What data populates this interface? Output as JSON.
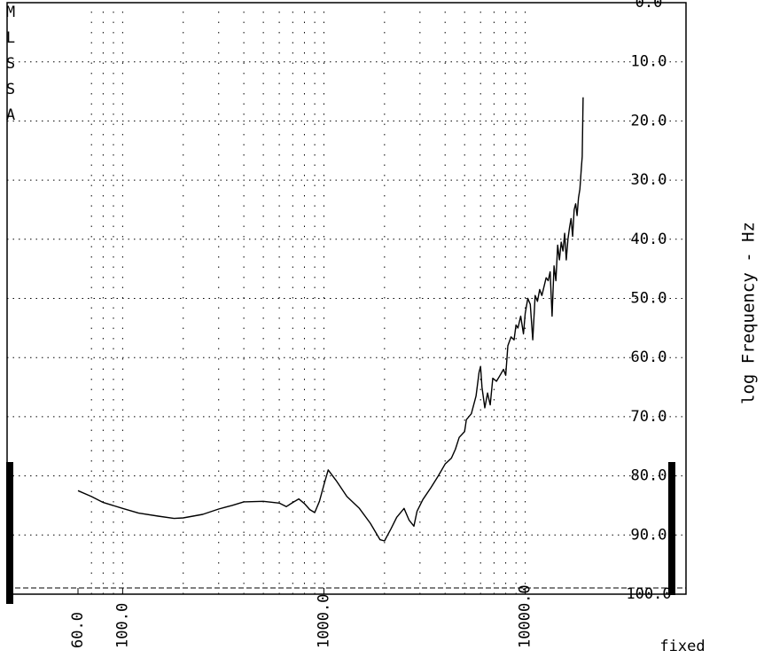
{
  "chart_data": {
    "type": "line",
    "header_letters": [
      "M",
      "L",
      "S",
      "S",
      "A"
    ],
    "xlabel": "log Frequency - Hz",
    "ylabel": "",
    "scale_mode": "fixed",
    "x_scale": "log",
    "xlim": [
      50,
      20000
    ],
    "ylim": [
      0,
      100
    ],
    "y_ticks": [
      100,
      90,
      80,
      70,
      60,
      50,
      40,
      30,
      20,
      10,
      0
    ],
    "y_tick_labels": [
      "100.0",
      "90.0",
      "80.0",
      "70.0",
      "60.0",
      "50.0",
      "40.0",
      "30.0",
      "20.0",
      "10.0",
      "0.0"
    ],
    "x_tick_labels": [
      {
        "value": 60,
        "label": "60.0"
      },
      {
        "value": 100,
        "label": "100.0"
      },
      {
        "value": 1000,
        "label": "1000.0"
      },
      {
        "value": 10000,
        "label": "10000.0"
      }
    ],
    "x_gridlines": [
      60,
      70,
      80,
      90,
      100,
      200,
      300,
      400,
      500,
      600,
      700,
      800,
      900,
      1000,
      2000,
      3000,
      4000,
      5000,
      6000,
      7000,
      8000,
      9000,
      10000
    ],
    "grid": true,
    "series": [
      {
        "points": [
          [
            60,
            82.5
          ],
          [
            70,
            83.5
          ],
          [
            80,
            84.5
          ],
          [
            100,
            85.5
          ],
          [
            120,
            86.3
          ],
          [
            150,
            86.8
          ],
          [
            180,
            87.2
          ],
          [
            200,
            87.1
          ],
          [
            250,
            86.5
          ],
          [
            300,
            85.6
          ],
          [
            350,
            85.0
          ],
          [
            400,
            84.4
          ],
          [
            500,
            84.3
          ],
          [
            600,
            84.6
          ],
          [
            650,
            85.2
          ],
          [
            700,
            84.5
          ],
          [
            750,
            83.9
          ],
          [
            800,
            84.7
          ],
          [
            850,
            85.7
          ],
          [
            900,
            86.2
          ],
          [
            950,
            84.3
          ],
          [
            1000,
            81.5
          ],
          [
            1050,
            79.0
          ],
          [
            1150,
            80.8
          ],
          [
            1300,
            83.5
          ],
          [
            1500,
            85.5
          ],
          [
            1700,
            88.0
          ],
          [
            1900,
            90.8
          ],
          [
            2000,
            91.0
          ],
          [
            2150,
            89.0
          ],
          [
            2300,
            87.0
          ],
          [
            2500,
            85.5
          ],
          [
            2650,
            87.5
          ],
          [
            2800,
            88.5
          ],
          [
            2900,
            86.0
          ],
          [
            3100,
            84.0
          ],
          [
            3400,
            82.0
          ],
          [
            3700,
            80.0
          ],
          [
            4000,
            78.0
          ],
          [
            4300,
            77.0
          ],
          [
            4500,
            75.5
          ],
          [
            4700,
            73.5
          ],
          [
            5000,
            72.5
          ],
          [
            5100,
            70.5
          ],
          [
            5400,
            69.5
          ],
          [
            5700,
            66.5
          ],
          [
            5900,
            62.5
          ],
          [
            6000,
            61.5
          ],
          [
            6100,
            65.0
          ],
          [
            6300,
            68.5
          ],
          [
            6500,
            66.0
          ],
          [
            6700,
            68.0
          ],
          [
            6900,
            63.5
          ],
          [
            7200,
            64.0
          ],
          [
            7500,
            63.0
          ],
          [
            7800,
            62.0
          ],
          [
            8000,
            63.0
          ],
          [
            8200,
            58.0
          ],
          [
            8500,
            56.5
          ],
          [
            8800,
            57.0
          ],
          [
            9000,
            54.5
          ],
          [
            9200,
            55.0
          ],
          [
            9500,
            53.0
          ],
          [
            9800,
            56.0
          ],
          [
            10000,
            52.5
          ],
          [
            10300,
            50.0
          ],
          [
            10600,
            51.0
          ],
          [
            10900,
            57.0
          ],
          [
            11200,
            49.5
          ],
          [
            11500,
            50.5
          ],
          [
            11800,
            48.5
          ],
          [
            12100,
            49.5
          ],
          [
            12400,
            48.0
          ],
          [
            12700,
            46.5
          ],
          [
            13000,
            47.0
          ],
          [
            13300,
            45.5
          ],
          [
            13600,
            53.0
          ],
          [
            13900,
            44.5
          ],
          [
            14200,
            47.0
          ],
          [
            14500,
            41.0
          ],
          [
            14800,
            43.5
          ],
          [
            15100,
            40.5
          ],
          [
            15400,
            42.0
          ],
          [
            15700,
            39.0
          ],
          [
            16000,
            43.5
          ],
          [
            16300,
            40.0
          ],
          [
            16600,
            38.0
          ],
          [
            16900,
            36.5
          ],
          [
            17200,
            39.5
          ],
          [
            17500,
            35.0
          ],
          [
            17800,
            34.0
          ],
          [
            18100,
            36.0
          ],
          [
            18400,
            33.0
          ],
          [
            18700,
            31.5
          ],
          [
            19000,
            28.0
          ],
          [
            19200,
            26.0
          ],
          [
            19400,
            16.0
          ]
        ]
      }
    ]
  }
}
